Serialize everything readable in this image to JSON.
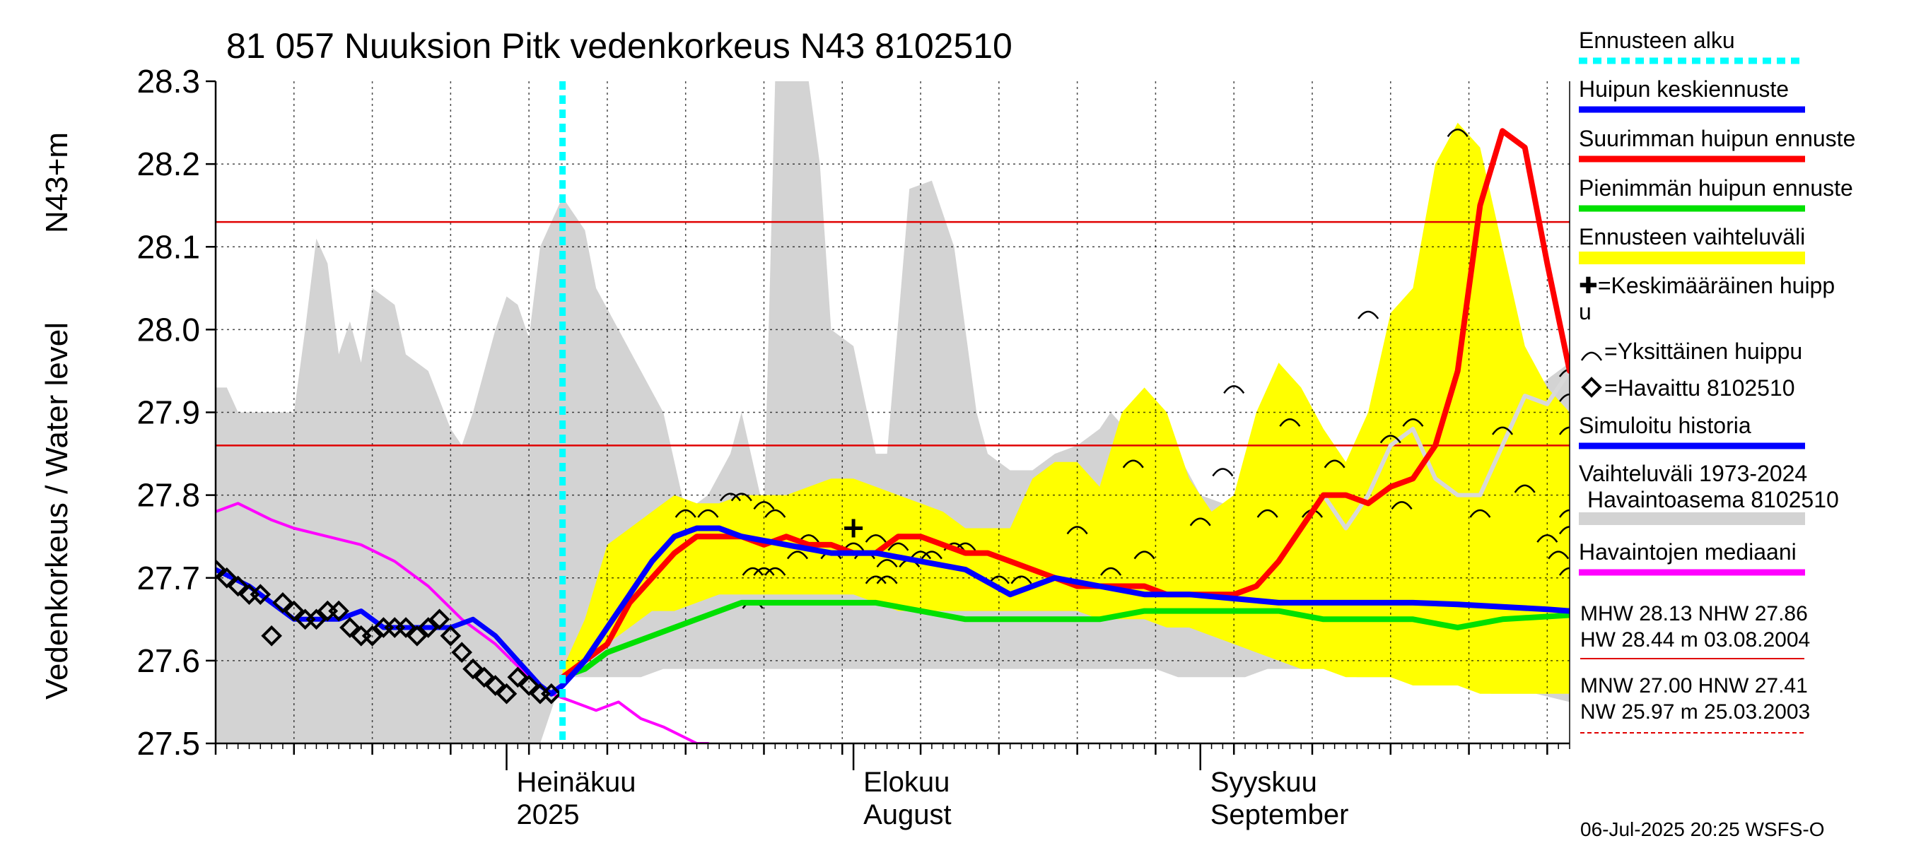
{
  "chart_data": {
    "type": "line",
    "title": "81 057 Nuuksion Pitk vedenkorkeus N43 8102510",
    "ylabel": "Vedenkorkeus / Water level",
    "yunit": "N43+m",
    "ylim": [
      27.5,
      28.3
    ],
    "yticks": [
      "27.5",
      "27.6",
      "27.7",
      "27.8",
      "27.9",
      "28.0",
      "28.1",
      "28.2",
      "28.3"
    ],
    "xlim": [
      "2025-06-05",
      "2025-10-04"
    ],
    "month_labels": [
      {
        "line1": "Heinäkuu",
        "line2": "2025",
        "date": "2025-07-01"
      },
      {
        "line1": "Elokuu",
        "line2": "August",
        "date": "2025-08-01"
      },
      {
        "line1": "Syyskuu",
        "line2": "September",
        "date": "2025-09-01"
      }
    ],
    "forecast_start": "2025-07-06",
    "reference_lines": {
      "MHW": 28.13,
      "NHW": 27.86
    },
    "grid": "dotted",
    "colors": {
      "history_band": "#d3d3d3",
      "forecast_band": "#ffff00",
      "mean": "#0000ff",
      "max": "#ff0000",
      "min": "#00e000",
      "median": "#ff00ff",
      "simulated": "#d8d8d8",
      "forecast_start": "#00ffff",
      "reference": "#e00000"
    },
    "history_band": {
      "x": [
        "2025-06-05",
        "2025-06-06",
        "2025-06-07",
        "2025-06-12",
        "2025-06-13",
        "2025-06-14",
        "2025-06-15",
        "2025-06-16",
        "2025-06-17",
        "2025-06-18",
        "2025-06-19",
        "2025-06-21",
        "2025-06-22",
        "2025-06-24",
        "2025-06-26",
        "2025-06-27",
        "2025-06-28",
        "2025-06-30",
        "2025-07-01",
        "2025-07-02",
        "2025-07-03",
        "2025-07-04",
        "2025-07-06",
        "2025-07-08",
        "2025-07-09",
        "2025-07-11",
        "2025-07-13",
        "2025-07-15",
        "2025-07-17",
        "2025-07-19",
        "2025-07-21",
        "2025-07-22",
        "2025-07-24",
        "2025-07-25",
        "2025-07-26",
        "2025-07-28",
        "2025-07-29",
        "2025-07-30",
        "2025-08-01",
        "2025-08-03",
        "2025-08-04",
        "2025-08-06",
        "2025-08-08",
        "2025-08-10",
        "2025-08-11",
        "2025-08-12",
        "2025-08-13",
        "2025-08-15",
        "2025-08-17",
        "2025-08-19",
        "2025-08-21",
        "2025-08-23",
        "2025-08-24",
        "2025-08-26",
        "2025-08-28",
        "2025-08-30",
        "2025-09-01",
        "2025-09-03",
        "2025-09-05",
        "2025-09-07",
        "2025-09-09",
        "2025-09-11",
        "2025-09-13",
        "2025-09-15",
        "2025-09-17",
        "2025-09-19",
        "2025-09-21",
        "2025-09-23",
        "2025-09-25",
        "2025-09-27",
        "2025-09-29",
        "2025-10-01",
        "2025-10-04"
      ],
      "upper": [
        27.93,
        27.93,
        27.9,
        27.9,
        28.0,
        28.11,
        28.08,
        27.97,
        28.01,
        27.96,
        28.05,
        28.03,
        27.97,
        27.95,
        27.88,
        27.86,
        27.9,
        28.0,
        28.04,
        28.03,
        27.99,
        28.1,
        28.16,
        28.12,
        28.05,
        28.0,
        27.95,
        27.9,
        27.78,
        27.8,
        27.85,
        27.9,
        27.78,
        28.3,
        28.3,
        28.3,
        28.2,
        28.0,
        27.98,
        27.85,
        27.85,
        28.17,
        28.18,
        28.1,
        28.0,
        27.9,
        27.85,
        27.83,
        27.83,
        27.85,
        27.86,
        27.88,
        27.9,
        27.87,
        27.88,
        27.85,
        27.8,
        27.79,
        27.75,
        27.76,
        27.77,
        27.76,
        27.78,
        27.8,
        27.85,
        27.9,
        27.9,
        27.86,
        27.82,
        27.86,
        27.9,
        27.93,
        27.96
      ],
      "lower": [
        27.5,
        27.5,
        27.5,
        27.5,
        27.5,
        27.5,
        27.5,
        27.5,
        27.5,
        27.5,
        27.5,
        27.5,
        27.5,
        27.5,
        27.5,
        27.5,
        27.5,
        27.5,
        27.5,
        27.5,
        27.5,
        27.5,
        27.58,
        27.58,
        27.58,
        27.58,
        27.58,
        27.59,
        27.59,
        27.59,
        27.59,
        27.59,
        27.59,
        27.59,
        27.59,
        27.59,
        27.59,
        27.59,
        27.59,
        27.59,
        27.59,
        27.59,
        27.59,
        27.59,
        27.59,
        27.59,
        27.59,
        27.59,
        27.59,
        27.59,
        27.59,
        27.59,
        27.59,
        27.59,
        27.59,
        27.58,
        27.58,
        27.58,
        27.58,
        27.59,
        27.59,
        27.59,
        27.59,
        27.58,
        27.58,
        27.58,
        27.57,
        27.57,
        27.57,
        27.56,
        27.56,
        27.56,
        27.55
      ]
    },
    "forecast_band": {
      "x": [
        "2025-07-06",
        "2025-07-07",
        "2025-07-08",
        "2025-07-10",
        "2025-07-12",
        "2025-07-14",
        "2025-07-16",
        "2025-07-18",
        "2025-07-20",
        "2025-07-22",
        "2025-07-24",
        "2025-07-26",
        "2025-07-28",
        "2025-07-30",
        "2025-08-01",
        "2025-08-03",
        "2025-08-05",
        "2025-08-07",
        "2025-08-09",
        "2025-08-11",
        "2025-08-13",
        "2025-08-15",
        "2025-08-17",
        "2025-08-19",
        "2025-08-21",
        "2025-08-23",
        "2025-08-25",
        "2025-08-27",
        "2025-08-29",
        "2025-08-31",
        "2025-09-02",
        "2025-09-04",
        "2025-09-06",
        "2025-09-08",
        "2025-09-10",
        "2025-09-12",
        "2025-09-14",
        "2025-09-16",
        "2025-09-18",
        "2025-09-20",
        "2025-09-22",
        "2025-09-24",
        "2025-09-26",
        "2025-09-28",
        "2025-09-30",
        "2025-10-02",
        "2025-10-04"
      ],
      "upper": [
        27.59,
        27.62,
        27.65,
        27.74,
        27.76,
        27.78,
        27.8,
        27.79,
        27.79,
        27.8,
        27.8,
        27.8,
        27.81,
        27.82,
        27.82,
        27.81,
        27.8,
        27.79,
        27.78,
        27.76,
        27.76,
        27.76,
        27.82,
        27.84,
        27.84,
        27.81,
        27.9,
        27.93,
        27.9,
        27.82,
        27.78,
        27.8,
        27.9,
        27.96,
        27.93,
        27.88,
        27.84,
        27.9,
        28.02,
        28.05,
        28.2,
        28.25,
        28.22,
        28.1,
        27.98,
        27.93,
        27.9
      ],
      "lower": [
        27.57,
        27.58,
        27.6,
        27.62,
        27.64,
        27.66,
        27.66,
        27.67,
        27.68,
        27.68,
        27.68,
        27.68,
        27.68,
        27.68,
        27.68,
        27.67,
        27.66,
        27.66,
        27.66,
        27.66,
        27.66,
        27.66,
        27.66,
        27.66,
        27.66,
        27.65,
        27.65,
        27.65,
        27.64,
        27.64,
        27.63,
        27.62,
        27.61,
        27.6,
        27.59,
        27.59,
        27.58,
        27.58,
        27.58,
        27.57,
        27.57,
        27.57,
        27.56,
        27.56,
        27.56,
        27.56,
        27.56
      ]
    },
    "series": [
      {
        "key": "median",
        "x": [
          "2025-06-05",
          "2025-06-07",
          "2025-06-10",
          "2025-06-12",
          "2025-06-15",
          "2025-06-18",
          "2025-06-21",
          "2025-06-24",
          "2025-06-27",
          "2025-06-30",
          "2025-07-03",
          "2025-07-05",
          "2025-07-07",
          "2025-07-09",
          "2025-07-11",
          "2025-07-13",
          "2025-07-15",
          "2025-07-18",
          "2025-07-19"
        ],
        "y": [
          27.78,
          27.79,
          27.77,
          27.76,
          27.75,
          27.74,
          27.72,
          27.69,
          27.65,
          27.62,
          27.58,
          27.56,
          27.55,
          27.54,
          27.55,
          27.53,
          27.52,
          27.5,
          27.5
        ]
      },
      {
        "key": "simulated",
        "x": [
          "2025-09-12",
          "2025-09-14",
          "2025-09-16",
          "2025-09-18",
          "2025-09-20",
          "2025-09-22",
          "2025-09-24",
          "2025-09-26",
          "2025-09-28",
          "2025-09-30",
          "2025-10-02",
          "2025-10-04"
        ],
        "y": [
          27.8,
          27.76,
          27.8,
          27.86,
          27.88,
          27.82,
          27.8,
          27.8,
          27.86,
          27.92,
          27.91,
          27.95
        ]
      },
      {
        "key": "observed_line",
        "x": [
          "2025-06-05",
          "2025-06-08",
          "2025-06-10",
          "2025-06-12",
          "2025-06-14",
          "2025-06-16",
          "2025-06-18",
          "2025-06-20",
          "2025-06-22",
          "2025-06-24",
          "2025-06-26",
          "2025-06-28",
          "2025-06-30",
          "2025-07-02",
          "2025-07-04",
          "2025-07-05"
        ],
        "y": [
          27.71,
          27.69,
          27.67,
          27.65,
          27.65,
          27.65,
          27.66,
          27.64,
          27.64,
          27.64,
          27.64,
          27.65,
          27.63,
          27.6,
          27.57,
          27.56
        ]
      },
      {
        "key": "min",
        "x": [
          "2025-07-06",
          "2025-07-08",
          "2025-07-10",
          "2025-07-14",
          "2025-07-18",
          "2025-07-22",
          "2025-07-26",
          "2025-07-30",
          "2025-08-03",
          "2025-08-07",
          "2025-08-11",
          "2025-08-15",
          "2025-08-19",
          "2025-08-23",
          "2025-08-27",
          "2025-08-31",
          "2025-09-04",
          "2025-09-08",
          "2025-09-12",
          "2025-09-16",
          "2025-09-20",
          "2025-09-24",
          "2025-09-28",
          "2025-10-04"
        ],
        "y": [
          27.58,
          27.59,
          27.61,
          27.63,
          27.65,
          27.67,
          27.67,
          27.67,
          27.67,
          27.66,
          27.65,
          27.65,
          27.65,
          27.65,
          27.66,
          27.66,
          27.66,
          27.66,
          27.65,
          27.65,
          27.65,
          27.64,
          27.65,
          27.655
        ]
      },
      {
        "key": "max",
        "x": [
          "2025-07-06",
          "2025-07-08",
          "2025-07-10",
          "2025-07-12",
          "2025-07-14",
          "2025-07-16",
          "2025-07-18",
          "2025-07-20",
          "2025-07-22",
          "2025-07-24",
          "2025-07-26",
          "2025-07-28",
          "2025-07-30",
          "2025-08-01",
          "2025-08-03",
          "2025-08-05",
          "2025-08-07",
          "2025-08-09",
          "2025-08-11",
          "2025-08-13",
          "2025-08-15",
          "2025-08-17",
          "2025-08-19",
          "2025-08-21",
          "2025-08-23",
          "2025-08-25",
          "2025-08-27",
          "2025-08-29",
          "2025-08-31",
          "2025-09-02",
          "2025-09-04",
          "2025-09-06",
          "2025-09-08",
          "2025-09-10",
          "2025-09-12",
          "2025-09-14",
          "2025-09-16",
          "2025-09-18",
          "2025-09-20",
          "2025-09-22",
          "2025-09-24",
          "2025-09-26",
          "2025-09-28",
          "2025-09-30",
          "2025-10-02",
          "2025-10-04"
        ],
        "y": [
          27.58,
          27.6,
          27.62,
          27.67,
          27.7,
          27.73,
          27.75,
          27.75,
          27.75,
          27.74,
          27.75,
          27.74,
          27.74,
          27.73,
          27.73,
          27.75,
          27.75,
          27.74,
          27.73,
          27.73,
          27.72,
          27.71,
          27.7,
          27.69,
          27.69,
          27.69,
          27.69,
          27.68,
          27.68,
          27.68,
          27.68,
          27.69,
          27.72,
          27.76,
          27.8,
          27.8,
          27.79,
          27.81,
          27.82,
          27.86,
          27.95,
          28.15,
          28.24,
          28.22,
          28.08,
          27.95
        ]
      },
      {
        "key": "mean",
        "x": [
          "2025-07-05",
          "2025-07-06",
          "2025-07-08",
          "2025-07-10",
          "2025-07-12",
          "2025-07-14",
          "2025-07-16",
          "2025-07-18",
          "2025-07-20",
          "2025-07-22",
          "2025-07-26",
          "2025-07-30",
          "2025-08-03",
          "2025-08-07",
          "2025-08-11",
          "2025-08-15",
          "2025-08-19",
          "2025-08-23",
          "2025-08-27",
          "2025-08-31",
          "2025-09-04",
          "2025-09-08",
          "2025-09-12",
          "2025-09-16",
          "2025-09-20",
          "2025-09-24",
          "2025-09-28",
          "2025-10-02",
          "2025-10-04"
        ],
        "y": [
          27.56,
          27.57,
          27.6,
          27.64,
          27.68,
          27.72,
          27.75,
          27.76,
          27.76,
          27.75,
          27.74,
          27.73,
          27.73,
          27.72,
          27.71,
          27.68,
          27.7,
          27.69,
          27.68,
          27.68,
          27.675,
          27.67,
          27.67,
          27.67,
          27.67,
          27.668,
          27.665,
          27.662,
          27.66
        ]
      }
    ],
    "observed": {
      "x": [
        "2025-06-05",
        "2025-06-06",
        "2025-06-07",
        "2025-06-08",
        "2025-06-09",
        "2025-06-10",
        "2025-06-11",
        "2025-06-12",
        "2025-06-13",
        "2025-06-14",
        "2025-06-15",
        "2025-06-16",
        "2025-06-17",
        "2025-06-18",
        "2025-06-19",
        "2025-06-20",
        "2025-06-21",
        "2025-06-22",
        "2025-06-23",
        "2025-06-24",
        "2025-06-25",
        "2025-06-26",
        "2025-06-27",
        "2025-06-28",
        "2025-06-29",
        "2025-06-30",
        "2025-07-01",
        "2025-07-02",
        "2025-07-03",
        "2025-07-04",
        "2025-07-05"
      ],
      "y": [
        27.71,
        27.7,
        27.69,
        27.68,
        27.68,
        27.63,
        27.67,
        27.66,
        27.65,
        27.65,
        27.66,
        27.66,
        27.64,
        27.63,
        27.63,
        27.64,
        27.64,
        27.64,
        27.63,
        27.64,
        27.65,
        27.63,
        27.61,
        27.59,
        27.58,
        27.57,
        27.56,
        27.58,
        27.57,
        27.56,
        27.56
      ]
    },
    "single_peaks": {
      "x": [
        "2025-07-17",
        "2025-07-19",
        "2025-07-21",
        "2025-07-22",
        "2025-07-23",
        "2025-07-23",
        "2025-07-24",
        "2025-07-24",
        "2025-07-25",
        "2025-07-25",
        "2025-07-26",
        "2025-07-27",
        "2025-07-28",
        "2025-07-30",
        "2025-08-01",
        "2025-08-02",
        "2025-08-03",
        "2025-08-03",
        "2025-08-04",
        "2025-08-04",
        "2025-08-05",
        "2025-08-06",
        "2025-08-07",
        "2025-08-08",
        "2025-08-10",
        "2025-08-11",
        "2025-08-14",
        "2025-08-16",
        "2025-08-21",
        "2025-08-24",
        "2025-08-26",
        "2025-08-27",
        "2025-09-01",
        "2025-09-03",
        "2025-09-04",
        "2025-09-07",
        "2025-09-09",
        "2025-09-11",
        "2025-09-13",
        "2025-09-16",
        "2025-09-18",
        "2025-09-19",
        "2025-09-20",
        "2025-09-24",
        "2025-09-26",
        "2025-09-28",
        "2025-09-30",
        "2025-10-02",
        "2025-10-03",
        "2025-10-04",
        "2025-10-04",
        "2025-10-04",
        "2025-10-04",
        "2025-10-04",
        "2025-10-04"
      ],
      "y": [
        27.78,
        27.78,
        27.8,
        27.8,
        27.71,
        27.67,
        27.79,
        27.71,
        27.71,
        27.78,
        27.75,
        27.73,
        27.75,
        27.73,
        27.74,
        27.73,
        27.75,
        27.7,
        27.72,
        27.7,
        27.74,
        27.72,
        27.73,
        27.73,
        27.74,
        27.74,
        27.7,
        27.7,
        27.76,
        27.71,
        27.84,
        27.73,
        27.77,
        27.83,
        27.93,
        27.78,
        27.89,
        27.78,
        27.84,
        28.02,
        27.87,
        27.79,
        27.89,
        28.24,
        27.78,
        27.88,
        27.81,
        27.75,
        27.73,
        27.71,
        27.92,
        27.88,
        27.95,
        27.78,
        27.76
      ],
      "_note": ""
    },
    "mean_peak": {
      "x": "2025-08-01",
      "y": 27.76
    },
    "legend": [
      {
        "label": "Ennusteen alku",
        "kind": "dash",
        "color": "#00ffff"
      },
      {
        "label": "Huipun keskiennuste",
        "kind": "line",
        "color": "#0000ff"
      },
      {
        "label": "Suurimman huipun ennuste",
        "kind": "line",
        "color": "#ff0000"
      },
      {
        "label": "Pienimmän huipun ennuste",
        "kind": "line",
        "color": "#00e000"
      },
      {
        "label": "Ennusteen vaihteluväli",
        "kind": "band",
        "color": "#ffff00"
      },
      {
        "label": "✚=Keskimääräinen huipp",
        "label2": "u",
        "kind": "none"
      },
      {
        "label": "=Yksittäinen huippu",
        "kind": "arc"
      },
      {
        "label": "=Havaittu 8102510",
        "kind": "diamond"
      },
      {
        "label": "Simuloitu historia",
        "kind": "line",
        "color": "#0000ff"
      },
      {
        "label": "Vaihteluväli 1973-2024",
        "label2": "Havaintoasema 8102510",
        "kind": "band",
        "color": "#d3d3d3"
      },
      {
        "label": "Havaintojen mediaani",
        "kind": "line",
        "color": "#ff00ff"
      }
    ],
    "stats": {
      "row1": "MHW  28.13 NHW  27.86",
      "row2": "HW  28.44 m 03.08.2004",
      "row3": "MNW  27.00 HNW  27.41",
      "row4": "NW  25.97 m 25.03.2003"
    },
    "footer": "06-Jul-2025 20:25 WSFS-O"
  }
}
